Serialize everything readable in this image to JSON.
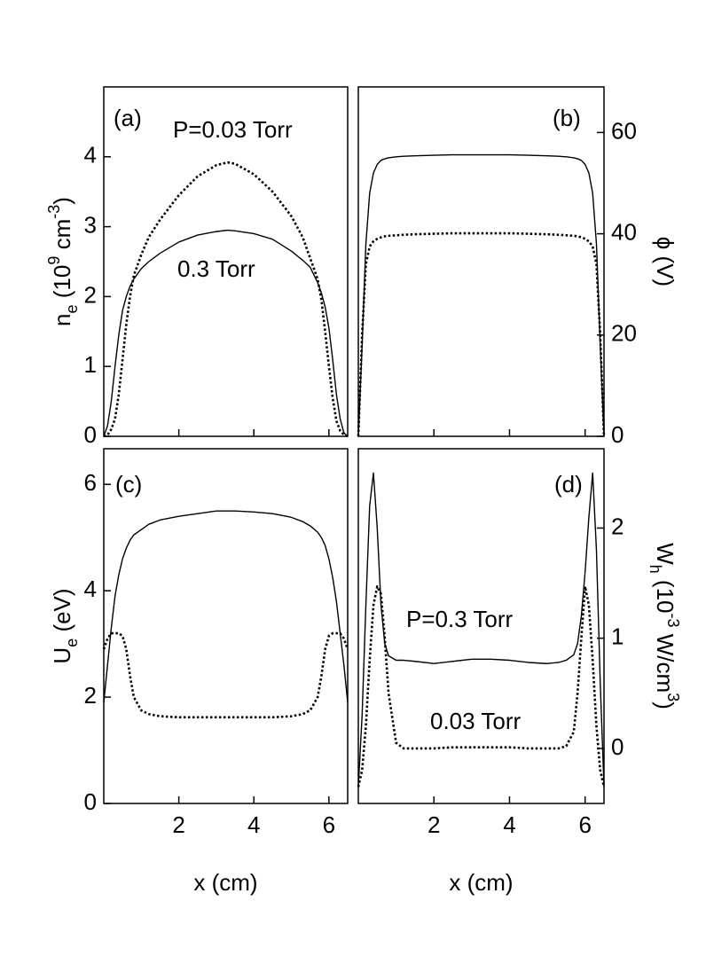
{
  "chart_data": [
    {
      "type": "line",
      "annotations": [
        "(a)",
        "P=0.03 Torr",
        "0.3 Torr"
      ],
      "y_label": [
        {
          "text": "n"
        },
        {
          "text": "e",
          "script": "sub"
        },
        {
          "text": " (10"
        },
        {
          "text": "9",
          "script": "super"
        },
        {
          "text": " cm"
        },
        {
          "text": "-3",
          "script": "super"
        },
        {
          "text": ")"
        }
      ],
      "yaxis_side": "left",
      "xtick_labels": false,
      "x": [
        0,
        0.1,
        0.2,
        0.3,
        0.4,
        0.5,
        0.6,
        0.7,
        0.8,
        1.0,
        1.2,
        1.5,
        2,
        2.5,
        3,
        3.3,
        3.5,
        4,
        4.5,
        5,
        5.3,
        5.5,
        5.7,
        5.8,
        5.9,
        6.0,
        6.1,
        6.2,
        6.3,
        6.4,
        6.5
      ],
      "xlim": [
        0,
        6.5
      ],
      "xticks": [
        2,
        4,
        6
      ],
      "ylim": [
        0,
        5
      ],
      "yticks": [
        0,
        1,
        2,
        3,
        4
      ],
      "series": [
        {
          "color": "#000000",
          "dash": "solid",
          "values": [
            0,
            0.15,
            0.5,
            1.0,
            1.45,
            1.8,
            2.0,
            2.15,
            2.25,
            2.4,
            2.5,
            2.62,
            2.78,
            2.88,
            2.93,
            2.95,
            2.94,
            2.9,
            2.82,
            2.65,
            2.52,
            2.42,
            2.2,
            2.05,
            1.85,
            1.55,
            1.1,
            0.6,
            0.25,
            0.05,
            0
          ]
        },
        {
          "color": "#000000",
          "dash": "dotted",
          "values": [
            0,
            0.02,
            0.1,
            0.25,
            0.6,
            1.1,
            1.6,
            2.0,
            2.3,
            2.6,
            2.85,
            3.1,
            3.45,
            3.72,
            3.88,
            3.92,
            3.9,
            3.75,
            3.5,
            3.15,
            2.85,
            2.55,
            2.25,
            1.95,
            1.5,
            1.0,
            0.55,
            0.22,
            0.08,
            0.02,
            0
          ]
        }
      ]
    },
    {
      "type": "line",
      "annotations": [
        "(b)"
      ],
      "y_label": [
        {
          "text": "ϕ (V)"
        }
      ],
      "yaxis_side": "right",
      "xtick_labels": false,
      "x": [
        0,
        0.1,
        0.2,
        0.3,
        0.4,
        0.5,
        0.6,
        0.7,
        0.8,
        1.0,
        1.2,
        1.5,
        2,
        2.5,
        3,
        3.3,
        3.5,
        4,
        4.5,
        5,
        5.3,
        5.5,
        5.7,
        5.8,
        5.9,
        6.0,
        6.1,
        6.2,
        6.3,
        6.4,
        6.5
      ],
      "xlim": [
        0,
        6.5
      ],
      "xticks": [
        2,
        4,
        6
      ],
      "ylim": [
        0,
        69
      ],
      "yticks": [
        0,
        20,
        40,
        60
      ],
      "series": [
        {
          "color": "#000000",
          "dash": "solid",
          "values": [
            0,
            18,
            38,
            48,
            52,
            53.7,
            54.5,
            54.8,
            55,
            55.2,
            55.3,
            55.4,
            55.5,
            55.6,
            55.6,
            55.6,
            55.6,
            55.6,
            55.5,
            55.4,
            55.3,
            55.2,
            55.0,
            54.8,
            54.5,
            53.7,
            52,
            48,
            38,
            18,
            0
          ]
        },
        {
          "color": "#000000",
          "dash": "dotted",
          "values": [
            0,
            20,
            34,
            37.5,
            38.5,
            39,
            39.3,
            39.5,
            39.6,
            39.7,
            39.8,
            39.9,
            40,
            40.1,
            40.1,
            40.1,
            40.1,
            40.1,
            40,
            39.9,
            39.8,
            39.7,
            39.6,
            39.5,
            39.3,
            39,
            38.5,
            37.5,
            34,
            20,
            0
          ]
        }
      ]
    },
    {
      "type": "line",
      "annotations": [
        "(c)"
      ],
      "y_label": [
        {
          "text": "U"
        },
        {
          "text": "e",
          "script": "sub"
        },
        {
          "text": " (eV)"
        }
      ],
      "x_label": "x (cm)",
      "yaxis_side": "left",
      "xtick_labels": true,
      "x": [
        0,
        0.1,
        0.2,
        0.3,
        0.4,
        0.5,
        0.6,
        0.7,
        0.8,
        1.0,
        1.2,
        1.5,
        2,
        2.5,
        3,
        3.3,
        3.5,
        4,
        4.5,
        5,
        5.3,
        5.5,
        5.7,
        5.8,
        5.9,
        6.0,
        6.1,
        6.2,
        6.3,
        6.4,
        6.5
      ],
      "xlim": [
        0,
        6.5
      ],
      "xticks": [
        2,
        4,
        6
      ],
      "ylim": [
        0,
        6.67
      ],
      "yticks": [
        0,
        2,
        4,
        6
      ],
      "series": [
        {
          "color": "#000000",
          "dash": "solid",
          "values": [
            1.9,
            2.6,
            3.3,
            3.9,
            4.3,
            4.6,
            4.8,
            4.95,
            5.05,
            5.15,
            5.25,
            5.33,
            5.4,
            5.45,
            5.5,
            5.5,
            5.5,
            5.48,
            5.45,
            5.38,
            5.3,
            5.22,
            5.1,
            5.0,
            4.85,
            4.6,
            4.25,
            3.8,
            3.2,
            2.6,
            1.9
          ]
        },
        {
          "color": "#000000",
          "dash": "dotted",
          "values": [
            2.9,
            3.1,
            3.2,
            3.2,
            3.2,
            3.15,
            2.9,
            2.4,
            2.0,
            1.75,
            1.68,
            1.64,
            1.62,
            1.62,
            1.62,
            1.62,
            1.62,
            1.62,
            1.62,
            1.64,
            1.68,
            1.75,
            2.0,
            2.4,
            2.9,
            3.15,
            3.2,
            3.2,
            3.2,
            3.1,
            2.9
          ]
        }
      ]
    },
    {
      "type": "line",
      "annotations": [
        "(d)",
        "P=0.3 Torr",
        "0.03 Torr"
      ],
      "y_label": [
        {
          "text": "W"
        },
        {
          "text": "h",
          "script": "sub"
        },
        {
          "text": " (10"
        },
        {
          "text": "-3",
          "script": "super"
        },
        {
          "text": " W/cm"
        },
        {
          "text": "3",
          "script": "super"
        },
        {
          "text": ")"
        }
      ],
      "x_label": "x (cm)",
      "yaxis_side": "right",
      "xtick_labels": true,
      "x": [
        0,
        0.1,
        0.2,
        0.3,
        0.4,
        0.5,
        0.6,
        0.7,
        0.8,
        1.0,
        1.2,
        1.5,
        2,
        2.5,
        3,
        3.3,
        3.5,
        4,
        4.5,
        5,
        5.3,
        5.5,
        5.7,
        5.8,
        5.9,
        6.0,
        6.1,
        6.2,
        6.3,
        6.4,
        6.5
      ],
      "xlim": [
        0,
        6.5
      ],
      "xticks": [
        2,
        4,
        6
      ],
      "ylim": [
        -0.5,
        2.72
      ],
      "yticks": [
        0,
        1,
        2
      ],
      "series": [
        {
          "color": "#000000",
          "dash": "solid",
          "values": [
            -0.35,
            0.3,
            1.3,
            2.2,
            2.5,
            2.0,
            1.3,
            0.95,
            0.84,
            0.8,
            0.8,
            0.79,
            0.77,
            0.79,
            0.81,
            0.81,
            0.81,
            0.8,
            0.78,
            0.77,
            0.78,
            0.8,
            0.85,
            0.95,
            1.2,
            1.6,
            2.1,
            2.5,
            1.8,
            0.6,
            -0.35
          ]
        },
        {
          "color": "#000000",
          "dash": "dotted",
          "values": [
            -0.35,
            -0.2,
            0.2,
            0.8,
            1.3,
            1.47,
            1.4,
            1.0,
            0.5,
            0.05,
            0,
            0,
            0,
            0.01,
            0.01,
            0.01,
            0.01,
            0.01,
            0,
            0,
            0,
            0.02,
            0.15,
            0.5,
            1.0,
            1.47,
            1.3,
            0.8,
            0.2,
            -0.2,
            -0.35
          ]
        }
      ]
    }
  ]
}
